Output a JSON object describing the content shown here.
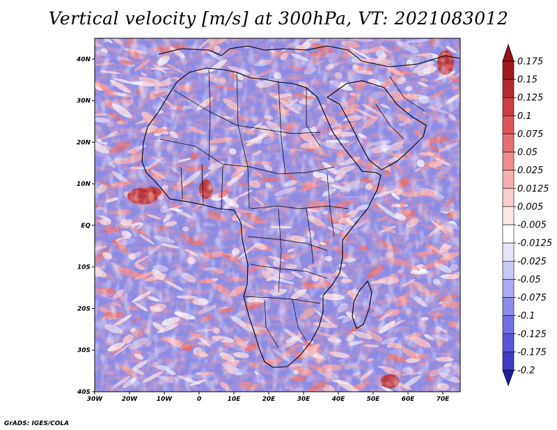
{
  "title": "Vertical velocity [m/s] at 300hPa, VT: 2021083012",
  "credit": "GrADS: IGES/COLA",
  "map": {
    "lon_range": [
      -30,
      75
    ],
    "lat_range": [
      -40,
      45
    ],
    "lon_ticks": [
      {
        "value": -30,
        "label": "30W"
      },
      {
        "value": -20,
        "label": "20W"
      },
      {
        "value": -10,
        "label": "10W"
      },
      {
        "value": 0,
        "label": "0"
      },
      {
        "value": 10,
        "label": "10E"
      },
      {
        "value": 20,
        "label": "20E"
      },
      {
        "value": 30,
        "label": "30E"
      },
      {
        "value": 40,
        "label": "40E"
      },
      {
        "value": 50,
        "label": "50E"
      },
      {
        "value": 60,
        "label": "60E"
      },
      {
        "value": 70,
        "label": "70E"
      }
    ],
    "lat_ticks": [
      {
        "value": 40,
        "label": "40N"
      },
      {
        "value": 30,
        "label": "30N"
      },
      {
        "value": 20,
        "label": "20N"
      },
      {
        "value": 10,
        "label": "10N"
      },
      {
        "value": 0,
        "label": "EQ"
      },
      {
        "value": -10,
        "label": "10S"
      },
      {
        "value": -20,
        "label": "20S"
      },
      {
        "value": -30,
        "label": "30S"
      },
      {
        "value": -40,
        "label": "40S"
      }
    ]
  },
  "colorbar": {
    "levels": [
      {
        "label": "0.175",
        "color": "#a01a1a"
      },
      {
        "label": "0.15",
        "color": "#b72a2a"
      },
      {
        "label": "0.125",
        "color": "#cc3d3d"
      },
      {
        "label": "0.1",
        "color": "#db5555"
      },
      {
        "label": "0.075",
        "color": "#e67070"
      },
      {
        "label": "0.05",
        "color": "#ef8d8d"
      },
      {
        "label": "0.025",
        "color": "#f6aeae"
      },
      {
        "label": "0.0125",
        "color": "#fbcccc"
      },
      {
        "label": "0.005",
        "color": "#fde8e8"
      },
      {
        "label": "-0.005",
        "color": "#ffffff"
      },
      {
        "label": "-0.0125",
        "color": "#e6e6fb"
      },
      {
        "label": "-0.025",
        "color": "#c9c9f5"
      },
      {
        "label": "-0.05",
        "color": "#aaaaf0"
      },
      {
        "label": "-0.075",
        "color": "#8d8deb"
      },
      {
        "label": "-0.1",
        "color": "#7070e3"
      },
      {
        "label": "-0.125",
        "color": "#5757d6"
      },
      {
        "label": "-0.175",
        "color": "#3c3cc4"
      },
      {
        "label": "-0.2",
        "color": "#2a2ab0"
      }
    ],
    "top_arrow_color": "#9a1010",
    "bottom_arrow_color": "#1f1f9e"
  }
}
